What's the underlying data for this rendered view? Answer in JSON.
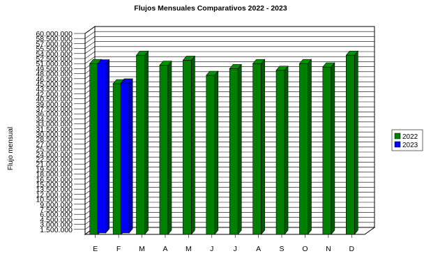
{
  "chart_data": {
    "type": "bar",
    "title": "Flujos Mensuales Comparativos 2022 - 2023",
    "ylabel": "Flujo mensual",
    "xlabel": "",
    "categories": [
      "E",
      "F",
      "M",
      "A",
      "M",
      "J",
      "J",
      "A",
      "S",
      "O",
      "N",
      "D"
    ],
    "ylim": [
      0,
      60000000
    ],
    "y_ticks": [
      "60.000.000",
      "58.500.000",
      "57.000.000",
      "55.500.000",
      "54.000.000",
      "52.500.000",
      "51.000.000",
      "49.500.000",
      "48.000.000",
      "46.500.000",
      "45.000.000",
      "43.500.000",
      "42.000.000",
      "40.500.000",
      "39.000.000",
      "37.500.000",
      "36.000.000",
      "34.500.000",
      "33.000.000",
      "31.500.000",
      "30.000.000",
      "28.500.000",
      "27.000.000",
      "25.500.000",
      "24.000.000",
      "22.500.000",
      "21.000.000",
      "19.500.000",
      "18.000.000",
      "16.500.000",
      "15.000.000",
      "13.500.000",
      "12.000.000",
      "10.500.000",
      "9.000.000",
      "7.500.000",
      "6.000.000",
      "4.500.000",
      "3.000.000",
      "1.500.000"
    ],
    "series": [
      {
        "name": "2022",
        "color": "#008000",
        "values": [
          51000000,
          45000000,
          53500000,
          50500000,
          52000000,
          47500000,
          49500000,
          51000000,
          49000000,
          51000000,
          50000000,
          53500000
        ]
      },
      {
        "name": "2023",
        "color": "#0000ff",
        "values": [
          50500000,
          44800000,
          null,
          null,
          null,
          null,
          null,
          null,
          null,
          null,
          null,
          null
        ]
      }
    ],
    "grid": true,
    "legend_position": "right"
  }
}
